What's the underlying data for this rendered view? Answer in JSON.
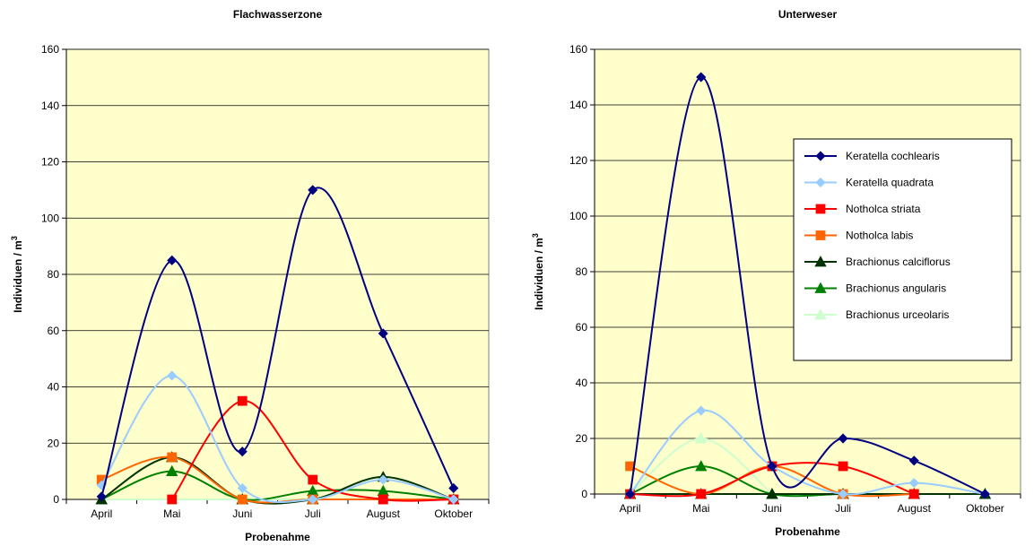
{
  "chart_data": [
    {
      "type": "line",
      "title": "Flachwasserzone",
      "xlabel": "Probenahme",
      "ylabel": "Individuen / m",
      "ylabel_sup": "3",
      "categories": [
        "April",
        "Mai",
        "Juni",
        "Juli",
        "August",
        "Oktober"
      ],
      "ylim": [
        0,
        160
      ],
      "yticks": [
        0,
        20,
        40,
        60,
        80,
        100,
        120,
        140,
        160
      ],
      "grid": true,
      "legend": "none",
      "series": [
        {
          "name": "Keratella cochlearis",
          "color": "#000080",
          "marker": "diamond",
          "values": [
            1,
            85,
            17,
            110,
            59,
            4
          ]
        },
        {
          "name": "Keratella quadrata",
          "color": "#99CCFF",
          "marker": "diamond",
          "values": [
            5,
            44,
            4,
            0,
            7,
            0
          ]
        },
        {
          "name": "Notholca striata",
          "color": "#FF0000",
          "marker": "square",
          "values": [
            null,
            0,
            35,
            7,
            0,
            0
          ]
        },
        {
          "name": "Notholca labis",
          "color": "#FF6600",
          "marker": "square",
          "values": [
            7,
            15,
            0,
            0,
            0,
            0
          ]
        },
        {
          "name": "Brachionus calciflorus",
          "color": "#003300",
          "marker": "triangle",
          "values": [
            0,
            15,
            0,
            0,
            8,
            0
          ]
        },
        {
          "name": "Brachionus angularis",
          "color": "#008000",
          "marker": "triangle",
          "values": [
            0,
            10,
            0,
            3,
            3,
            0
          ]
        },
        {
          "name": "Brachionus urceolaris",
          "color": "#CCFFCC",
          "marker": "triangle",
          "values": [
            0,
            0,
            0,
            0,
            0,
            0
          ]
        }
      ]
    },
    {
      "type": "line",
      "title": "Unterweser",
      "xlabel": "Probenahme",
      "ylabel": "Individuen / m",
      "ylabel_sup": "3",
      "categories": [
        "April",
        "Mai",
        "Juni",
        "Juli",
        "August",
        "Oktober"
      ],
      "ylim": [
        0,
        160
      ],
      "yticks": [
        0,
        20,
        40,
        60,
        80,
        100,
        120,
        140,
        160
      ],
      "grid": true,
      "legend": "right",
      "series": [
        {
          "name": "Keratella cochlearis",
          "color": "#000080",
          "marker": "diamond",
          "values": [
            0,
            150,
            10,
            20,
            12,
            0
          ]
        },
        {
          "name": "Keratella quadrata",
          "color": "#99CCFF",
          "marker": "diamond",
          "values": [
            0,
            30,
            10,
            0,
            4,
            0
          ]
        },
        {
          "name": "Notholca striata",
          "color": "#FF0000",
          "marker": "square",
          "values": [
            0,
            0,
            10,
            10,
            0,
            null
          ]
        },
        {
          "name": "Notholca labis",
          "color": "#FF6600",
          "marker": "square",
          "values": [
            10,
            0,
            10,
            0,
            0,
            null
          ]
        },
        {
          "name": "Brachionus calciflorus",
          "color": "#003300",
          "marker": "triangle",
          "values": [
            0,
            0,
            0,
            0,
            0,
            0
          ]
        },
        {
          "name": "Brachionus angularis",
          "color": "#008000",
          "marker": "triangle",
          "values": [
            0,
            10,
            0,
            0,
            0,
            0
          ]
        },
        {
          "name": "Brachionus urceolaris",
          "color": "#CCFFCC",
          "marker": "triangle",
          "values": [
            0,
            20,
            0,
            null,
            null,
            null
          ]
        }
      ]
    }
  ]
}
